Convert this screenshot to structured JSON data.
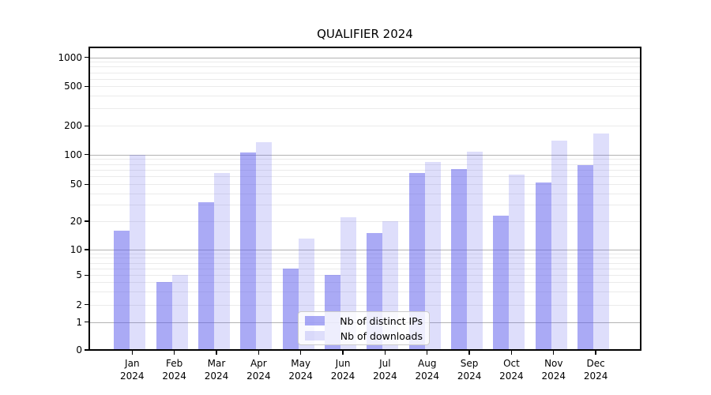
{
  "title": "QUALIFIER 2024",
  "chart_data": {
    "type": "bar",
    "title": "QUALIFIER 2024",
    "categories": [
      "Jan",
      "Feb",
      "Mar",
      "Apr",
      "May",
      "Jun",
      "Jul",
      "Aug",
      "Sep",
      "Oct",
      "Nov",
      "Dec"
    ],
    "category_year": "2024",
    "series": [
      {
        "name": "Nb of distinct IPs",
        "color": "rgba(92,92,235,0.52)",
        "values": [
          16,
          4,
          32,
          105,
          6,
          5,
          15,
          65,
          72,
          23,
          52,
          79
        ]
      },
      {
        "name": "Nb of downloads",
        "color": "rgba(92,92,235,0.20)",
        "values": [
          100,
          5,
          65,
          135,
          13,
          22,
          20,
          85,
          108,
          63,
          140,
          165
        ]
      }
    ],
    "y_axis": {
      "ticks": [
        0,
        1,
        2,
        5,
        10,
        20,
        50,
        100,
        200,
        500,
        1000
      ],
      "scale": "symlog",
      "major_gridlines": [
        1,
        10,
        100,
        1000
      ],
      "ylim": [
        0,
        1300
      ]
    },
    "x_axis": {
      "label_lines": 2
    },
    "legend": {
      "position": "lower-center",
      "entries": [
        "Nb of distinct IPs",
        "Nb of downloads"
      ]
    },
    "grid": true
  },
  "colors": {
    "bar_base": "#5c5ceb",
    "major_grid": "#b3b3b3",
    "minor_grid": "#ebebeb",
    "spine": "#000000",
    "background": "#ffffff"
  }
}
